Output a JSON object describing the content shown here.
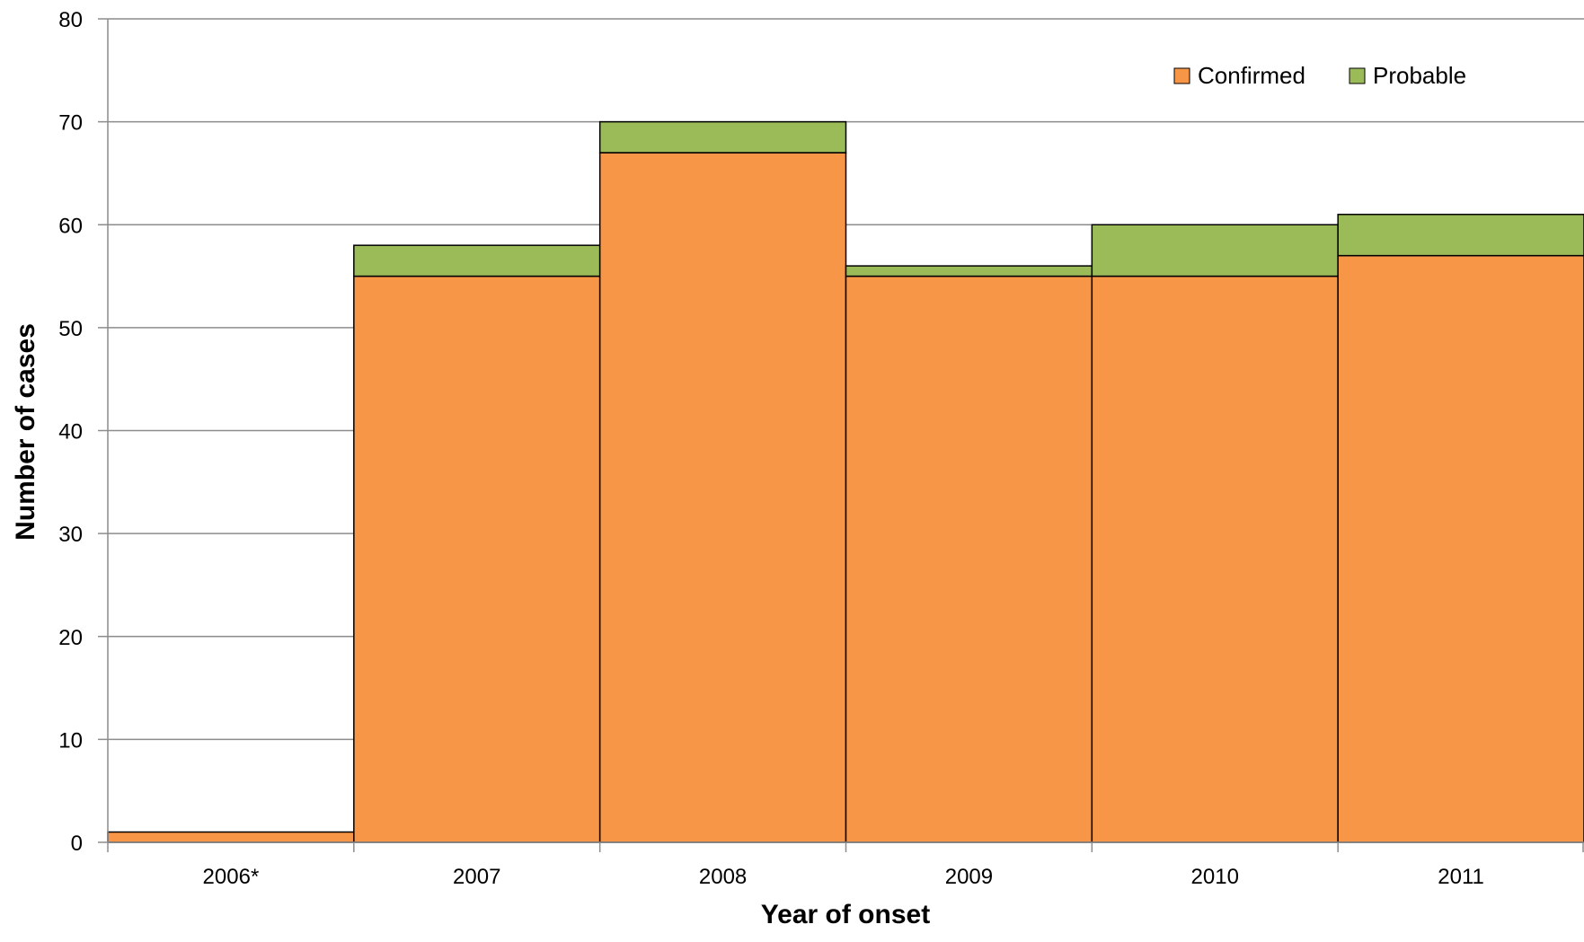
{
  "chart_data": {
    "type": "bar",
    "stacked": true,
    "categories": [
      "2006*",
      "2007",
      "2008",
      "2009",
      "2010",
      "2011"
    ],
    "series": [
      {
        "name": "Confirmed",
        "values": [
          1,
          55,
          67,
          55,
          55,
          57
        ],
        "color": "#f79646"
      },
      {
        "name": "Probable",
        "values": [
          0,
          3,
          3,
          1,
          5,
          4
        ],
        "color": "#9bbb59"
      }
    ],
    "xlabel": "Year of onset",
    "ylabel": "Number of cases",
    "ylim": [
      0,
      80
    ],
    "yticks": [
      0,
      10,
      20,
      30,
      40,
      50,
      60,
      70,
      80
    ],
    "grid": true,
    "legend_position": "top-right",
    "bar_outline_color": "#000000",
    "gridline_color": "#8c8c8c",
    "axis_color": "#8c8c8c"
  }
}
